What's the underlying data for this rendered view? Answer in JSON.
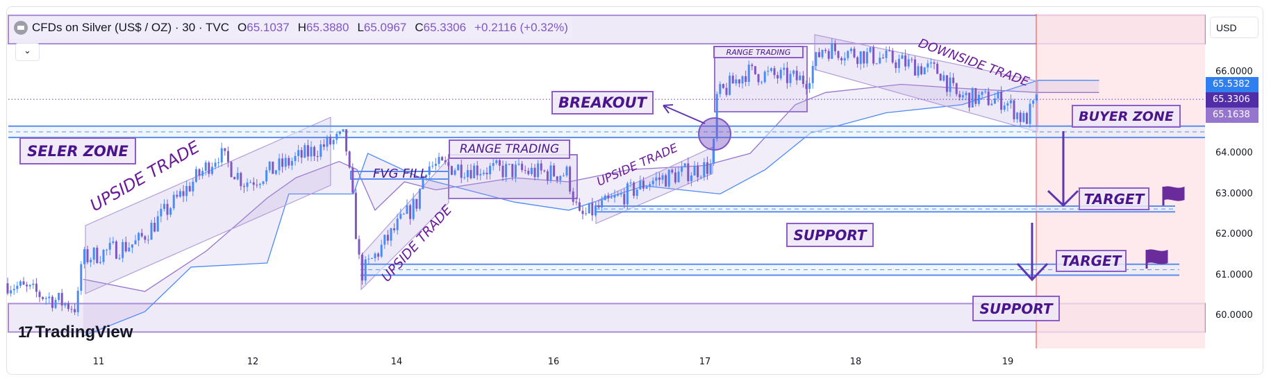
{
  "header": {
    "symbol": "CFDs on Silver (US$ / OZ) · 30 · TVC",
    "open_label": "O",
    "open": "65.1037",
    "high_label": "H",
    "high": "65.3880",
    "low_label": "L",
    "low": "65.0967",
    "close_label": "C",
    "close": "65.3306",
    "change": "+0.2116 (+0.32%)"
  },
  "currency": "USD",
  "collapse_icon": "chevron-down-icon",
  "brand": "TradingView",
  "chart_data": {
    "type": "candlestick",
    "symbol": "CFDs on Silver (US$ / OZ)",
    "interval": "30",
    "y_ticks": [
      "66.0000",
      "64.0000",
      "63.0000",
      "62.0000",
      "61.0000",
      "60.0000"
    ],
    "ylim": [
      59.6,
      67.4
    ],
    "x_ticks": [
      "11",
      "12",
      "14",
      "16",
      "17",
      "18",
      "19"
    ],
    "price_tags": [
      {
        "value": "65.5382",
        "color": "#2f7ff0"
      },
      {
        "value": "65.3306",
        "color": "#512da8"
      },
      {
        "value": "65.1638",
        "color": "#9575cd"
      }
    ],
    "current_price": 65.3306,
    "approx_price_path": [
      [
        10.41,
        60.8
      ],
      [
        10.86,
        60.2
      ],
      [
        10.89,
        61.4
      ],
      [
        11.25,
        61.8
      ],
      [
        11.78,
        64.0
      ],
      [
        11.94,
        63.3
      ],
      [
        13.0,
        64.2
      ],
      [
        13.28,
        64.4
      ],
      [
        13.39,
        62.8
      ],
      [
        13.5,
        61.0
      ],
      [
        14.26,
        62.8
      ],
      [
        14.37,
        63.7
      ],
      [
        16.09,
        63.5
      ],
      [
        16.17,
        62.4
      ],
      [
        16.63,
        63.3
      ],
      [
        17.05,
        63.7
      ],
      [
        17.08,
        65.4
      ],
      [
        17.27,
        66.0
      ],
      [
        17.67,
        65.8
      ],
      [
        17.78,
        66.6
      ],
      [
        18.24,
        66.3
      ],
      [
        18.56,
        66.0
      ],
      [
        18.66,
        65.4
      ],
      [
        18.98,
        65.3
      ],
      [
        19.11,
        64.8
      ],
      [
        19.2,
        65.33
      ]
    ],
    "levels": {
      "seller_buyer_zone": [
        64.39,
        64.67
      ],
      "target_support_1": [
        62.56,
        62.7
      ],
      "target_support_2": [
        61.0,
        61.27
      ],
      "top_band": [
        66.7,
        67.4
      ],
      "bottom_band": [
        59.6,
        60.3
      ]
    },
    "colors": {
      "up": "#4a8cf7",
      "down": "#7e57c2",
      "zone_line": "#5b8def",
      "annotation": "#4a148c",
      "forecast_area": "#fde2e6",
      "forecast_line": "#f44336"
    }
  },
  "annotations": {
    "seller_zone": "SELER ZONE",
    "upside_trade_1": "UPSIDE TRADE",
    "fvg_fill": "FVG FILL",
    "range_trading_1": "RANGE TRADING",
    "upside_trade_2": "UPSIDE TRADE",
    "upside_trade_3": "UPSIDE TRADE",
    "breakout": "BREAKOUT",
    "range_trading_2": "RANGE TRADING",
    "downside_trade": "DOWNSIDE TRADE",
    "buyer_zone": "BUYER ZONE",
    "target_1": "TARGET",
    "target_2": "TARGET",
    "support_1": "SUPPORT",
    "support_2": "SUPPORT",
    "flag_icon": "flag-icon"
  }
}
